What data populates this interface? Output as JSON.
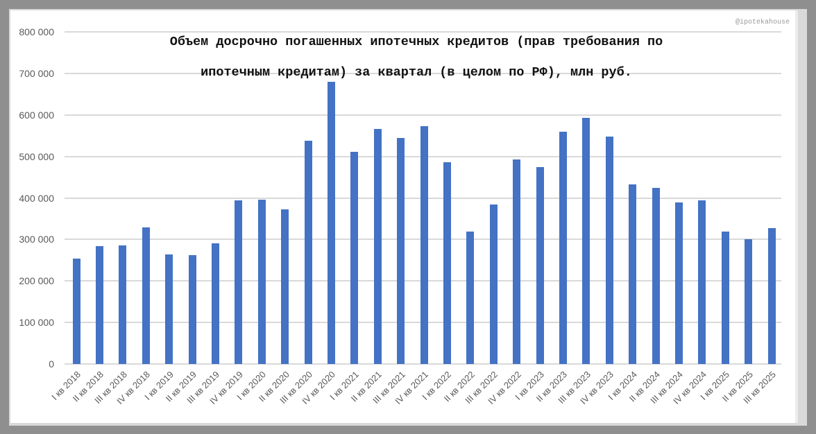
{
  "watermark": "@ipotekahouse",
  "chart_data": {
    "type": "bar",
    "title": "Объем досрочно погашенных ипотечных кредитов (прав требования по ипотечным кредитам) за квартал (в целом по РФ), млн руб.",
    "title_lines": [
      "Объем досрочно погашенных ипотечных кредитов (прав требования по",
      "ипотечным кредитам) за квартал (в целом по РФ), млн руб."
    ],
    "xlabel": "",
    "ylabel": "",
    "ylim": [
      0,
      800000
    ],
    "yticks": [
      "0",
      "100 000",
      "200 000",
      "300 000",
      "400 000",
      "500 000",
      "600 000",
      "700 000",
      "800 000"
    ],
    "grid": true,
    "legend": null,
    "bar_color": "#4472c4",
    "categories": [
      "I кв 2018",
      "II кв 2018",
      "III кв 2018",
      "IV кв 2018",
      "I кв 2019",
      "II кв 2019",
      "III кв 2019",
      "IV кв 2019",
      "I кв 2020",
      "II кв 2020",
      "III кв 2020",
      "IV кв 2020",
      "I кв 2021",
      "II кв 2021",
      "III кв 2021",
      "IV кв 2021",
      "I кв 2022",
      "II кв 2022",
      "III кв 2022",
      "IV кв 2022",
      "I кв 2023",
      "II кв 2023",
      "III кв 2023",
      "IV кв 2023",
      "I кв 2024",
      "II кв 2024",
      "III кв 2024",
      "IV кв 2024",
      "I кв 2025",
      "II кв 2025",
      "III кв 2025"
    ],
    "values": [
      254000,
      284000,
      285000,
      329000,
      264000,
      262000,
      290000,
      394000,
      396000,
      372000,
      538000,
      679000,
      511000,
      566000,
      544000,
      573000,
      486000,
      319000,
      384000,
      492000,
      474000,
      559000,
      593000,
      548000,
      432000,
      424000,
      389000,
      394000,
      319000,
      301000,
      327000
    ]
  }
}
